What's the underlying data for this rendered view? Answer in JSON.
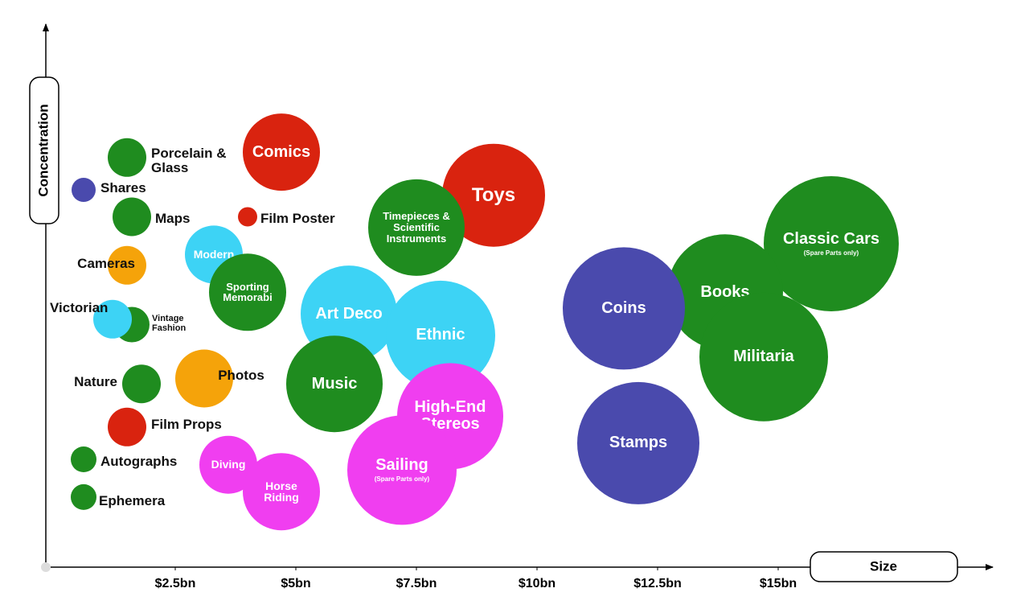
{
  "chart_data": {
    "type": "bubble",
    "xlabel": "Size",
    "ylabel": "Concentration",
    "xlim": [
      -0.2,
      19.2
    ],
    "ylim": [
      0,
      100
    ],
    "xticks": [
      {
        "value": 2.5,
        "label": "$2.5bn"
      },
      {
        "value": 5,
        "label": "$5bn"
      },
      {
        "value": 7.5,
        "label": "$7.5bn"
      },
      {
        "value": 10,
        "label": "$10bn"
      },
      {
        "value": 12.5,
        "label": "$12.5bn"
      },
      {
        "value": 15,
        "label": "$15bn"
      }
    ],
    "categories": [
      "Porcelain & Glass",
      "Shares",
      "Comics",
      "Maps",
      "Film Poster",
      "Toys",
      "Timepieces & Scientific Instruments",
      "Cameras",
      "Modern",
      "Sporting Memorabi",
      "Classic Cars",
      "Books",
      "Coins",
      "Art Deco",
      "Ethnic",
      "Militaria",
      "Vintage Fashion",
      "Victorian",
      "Nature",
      "Photos",
      "Music",
      "High-End Stereos",
      "Film Props",
      "Stamps",
      "Autographs",
      "Diving",
      "Sailing",
      "Horse Riding",
      "Ephemera"
    ],
    "x": [
      1.5,
      0.6,
      4.7,
      1.6,
      4.0,
      9.1,
      7.5,
      1.5,
      3.3,
      4.0,
      16.1,
      13.9,
      11.8,
      6.1,
      8.0,
      14.7,
      1.6,
      1.2,
      1.8,
      3.1,
      5.8,
      8.2,
      1.5,
      12.1,
      0.6,
      3.6,
      7.2,
      4.7,
      0.6
    ],
    "values": [
      76,
      70,
      77,
      65,
      65,
      69,
      63,
      56,
      58,
      51,
      60,
      51,
      48,
      47,
      43,
      39,
      45,
      46,
      34,
      35,
      34,
      28,
      26,
      23,
      20,
      19,
      18,
      14,
      13
    ],
    "sizes": [
      6,
      3.75,
      12,
      6,
      3,
      16,
      15,
      6,
      9,
      12,
      21,
      18,
      19,
      15,
      17,
      20,
      5.5,
      6,
      6,
      9,
      15,
      16.5,
      6,
      19,
      4,
      9,
      17,
      12,
      4
    ],
    "colors": [
      "#1f8c1f",
      "#4a4aad",
      "#d9230f",
      "#1f8c1f",
      "#d9230f",
      "#d9230f",
      "#1f8c1f",
      "#f5a30a",
      "#3dd3f5",
      "#1f8c1f",
      "#1f8c1f",
      "#1f8c1f",
      "#4a4aad",
      "#3dd3f5",
      "#3dd3f5",
      "#1f8c1f",
      "#1f8c1f",
      "#3dd3f5",
      "#1f8c1f",
      "#f5a30a",
      "#1f8c1f",
      "#f03ef0",
      "#d9230f",
      "#4a4aad",
      "#1f8c1f",
      "#f03ef0",
      "#f03ef0",
      "#f03ef0",
      "#1f8c1f"
    ],
    "annotations": [
      "(Spare Parts only)",
      "(Spare Parts only)"
    ]
  }
}
